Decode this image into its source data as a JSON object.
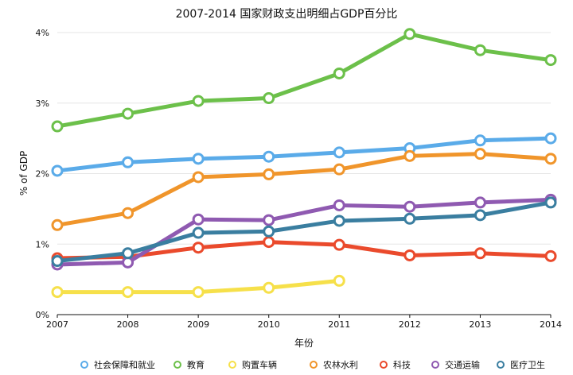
{
  "chart_data": {
    "type": "line",
    "title": "2007-2014 国家财政支出明细占GDP百分比",
    "xlabel": "年份",
    "ylabel": "% of GDP",
    "x": [
      "2007",
      "2008",
      "2009",
      "2010",
      "2011",
      "2012",
      "2013",
      "2014"
    ],
    "ylim": [
      0,
      4
    ],
    "yticks": [
      "0%",
      "1%",
      "2%",
      "3%",
      "4%"
    ],
    "grid": true,
    "legend_position": "bottom",
    "series": [
      {
        "name": "社会保障和就业",
        "color": "#5aabe9",
        "values": [
          2.04,
          2.16,
          2.21,
          2.24,
          2.3,
          2.36,
          2.47,
          2.5
        ]
      },
      {
        "name": "教育",
        "color": "#6cc04a",
        "values": [
          2.67,
          2.85,
          3.03,
          3.07,
          3.42,
          3.98,
          3.75,
          3.61
        ]
      },
      {
        "name": "购置车辆",
        "color": "#f6e04a",
        "values": [
          0.32,
          0.32,
          0.32,
          0.38,
          0.48,
          null,
          null,
          null
        ]
      },
      {
        "name": "农林水利",
        "color": "#f0952b",
        "values": [
          1.27,
          1.44,
          1.95,
          1.99,
          2.06,
          2.25,
          2.28,
          2.21
        ]
      },
      {
        "name": "科技",
        "color": "#ea4a2c",
        "values": [
          0.8,
          0.82,
          0.95,
          1.03,
          0.99,
          0.84,
          0.87,
          0.83
        ]
      },
      {
        "name": "交通运输",
        "color": "#8f5ab1",
        "values": [
          0.71,
          0.74,
          1.35,
          1.34,
          1.55,
          1.53,
          1.59,
          1.63
        ]
      },
      {
        "name": "医疗卫生",
        "color": "#3a7ea0",
        "values": [
          0.76,
          0.87,
          1.16,
          1.18,
          1.33,
          1.36,
          1.41,
          1.59
        ]
      }
    ]
  }
}
